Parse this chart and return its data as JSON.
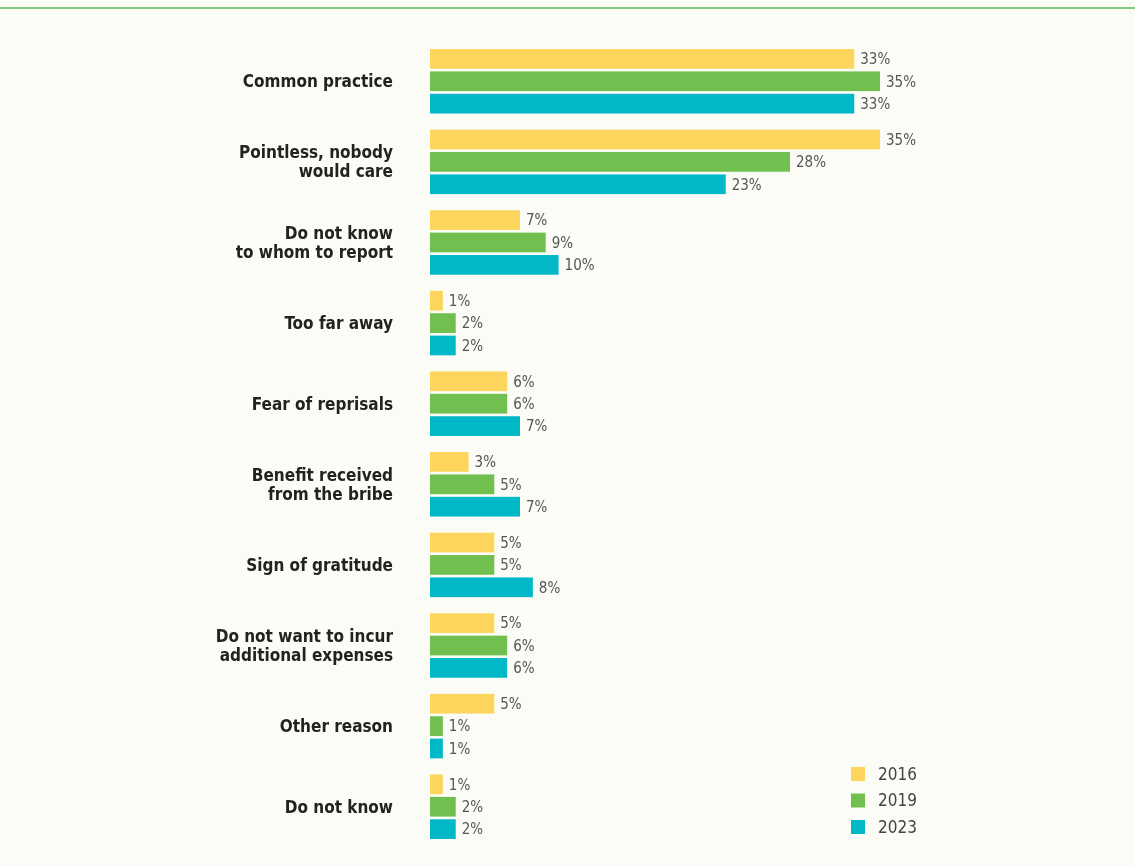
{
  "chart_data": {
    "type": "bar",
    "orientation": "horizontal",
    "categories": [
      "Common practice",
      "Pointless, nobody\nwould care",
      "Do not know\nto whom to report",
      "Too far away",
      "Fear of reprisals",
      "Benefit received\nfrom the bribe",
      "Sign of gratitude",
      "Do not want to incur\nadditional expenses",
      "Other reason",
      "Do not know"
    ],
    "series": [
      {
        "name": "2016",
        "color": "#fdd55c",
        "values": [
          33,
          35,
          7,
          1,
          6,
          3,
          5,
          5,
          5,
          1
        ],
        "value_labels": [
          "33%",
          "35%",
          "7%",
          "1%",
          "6%",
          "3%",
          "5%",
          "5%",
          "5%",
          "1%"
        ]
      },
      {
        "name": "2019",
        "color": "#70bf4f",
        "values": [
          35,
          28,
          9,
          2,
          6,
          5,
          5,
          6,
          1,
          2
        ],
        "value_labels": [
          "35%",
          "28%",
          "9%",
          "2%",
          "6%",
          "5%",
          "5%",
          "6%",
          "1%",
          "2%"
        ]
      },
      {
        "name": "2023",
        "color": "#00b8c8",
        "values": [
          33,
          23,
          10,
          2,
          7,
          7,
          8,
          6,
          1,
          2
        ],
        "value_labels": [
          "33%",
          "23%",
          "10%",
          "2%",
          "7%",
          "7%",
          "8%",
          "6%",
          "1%",
          "2%"
        ]
      }
    ],
    "legend": "bottom right"
  }
}
